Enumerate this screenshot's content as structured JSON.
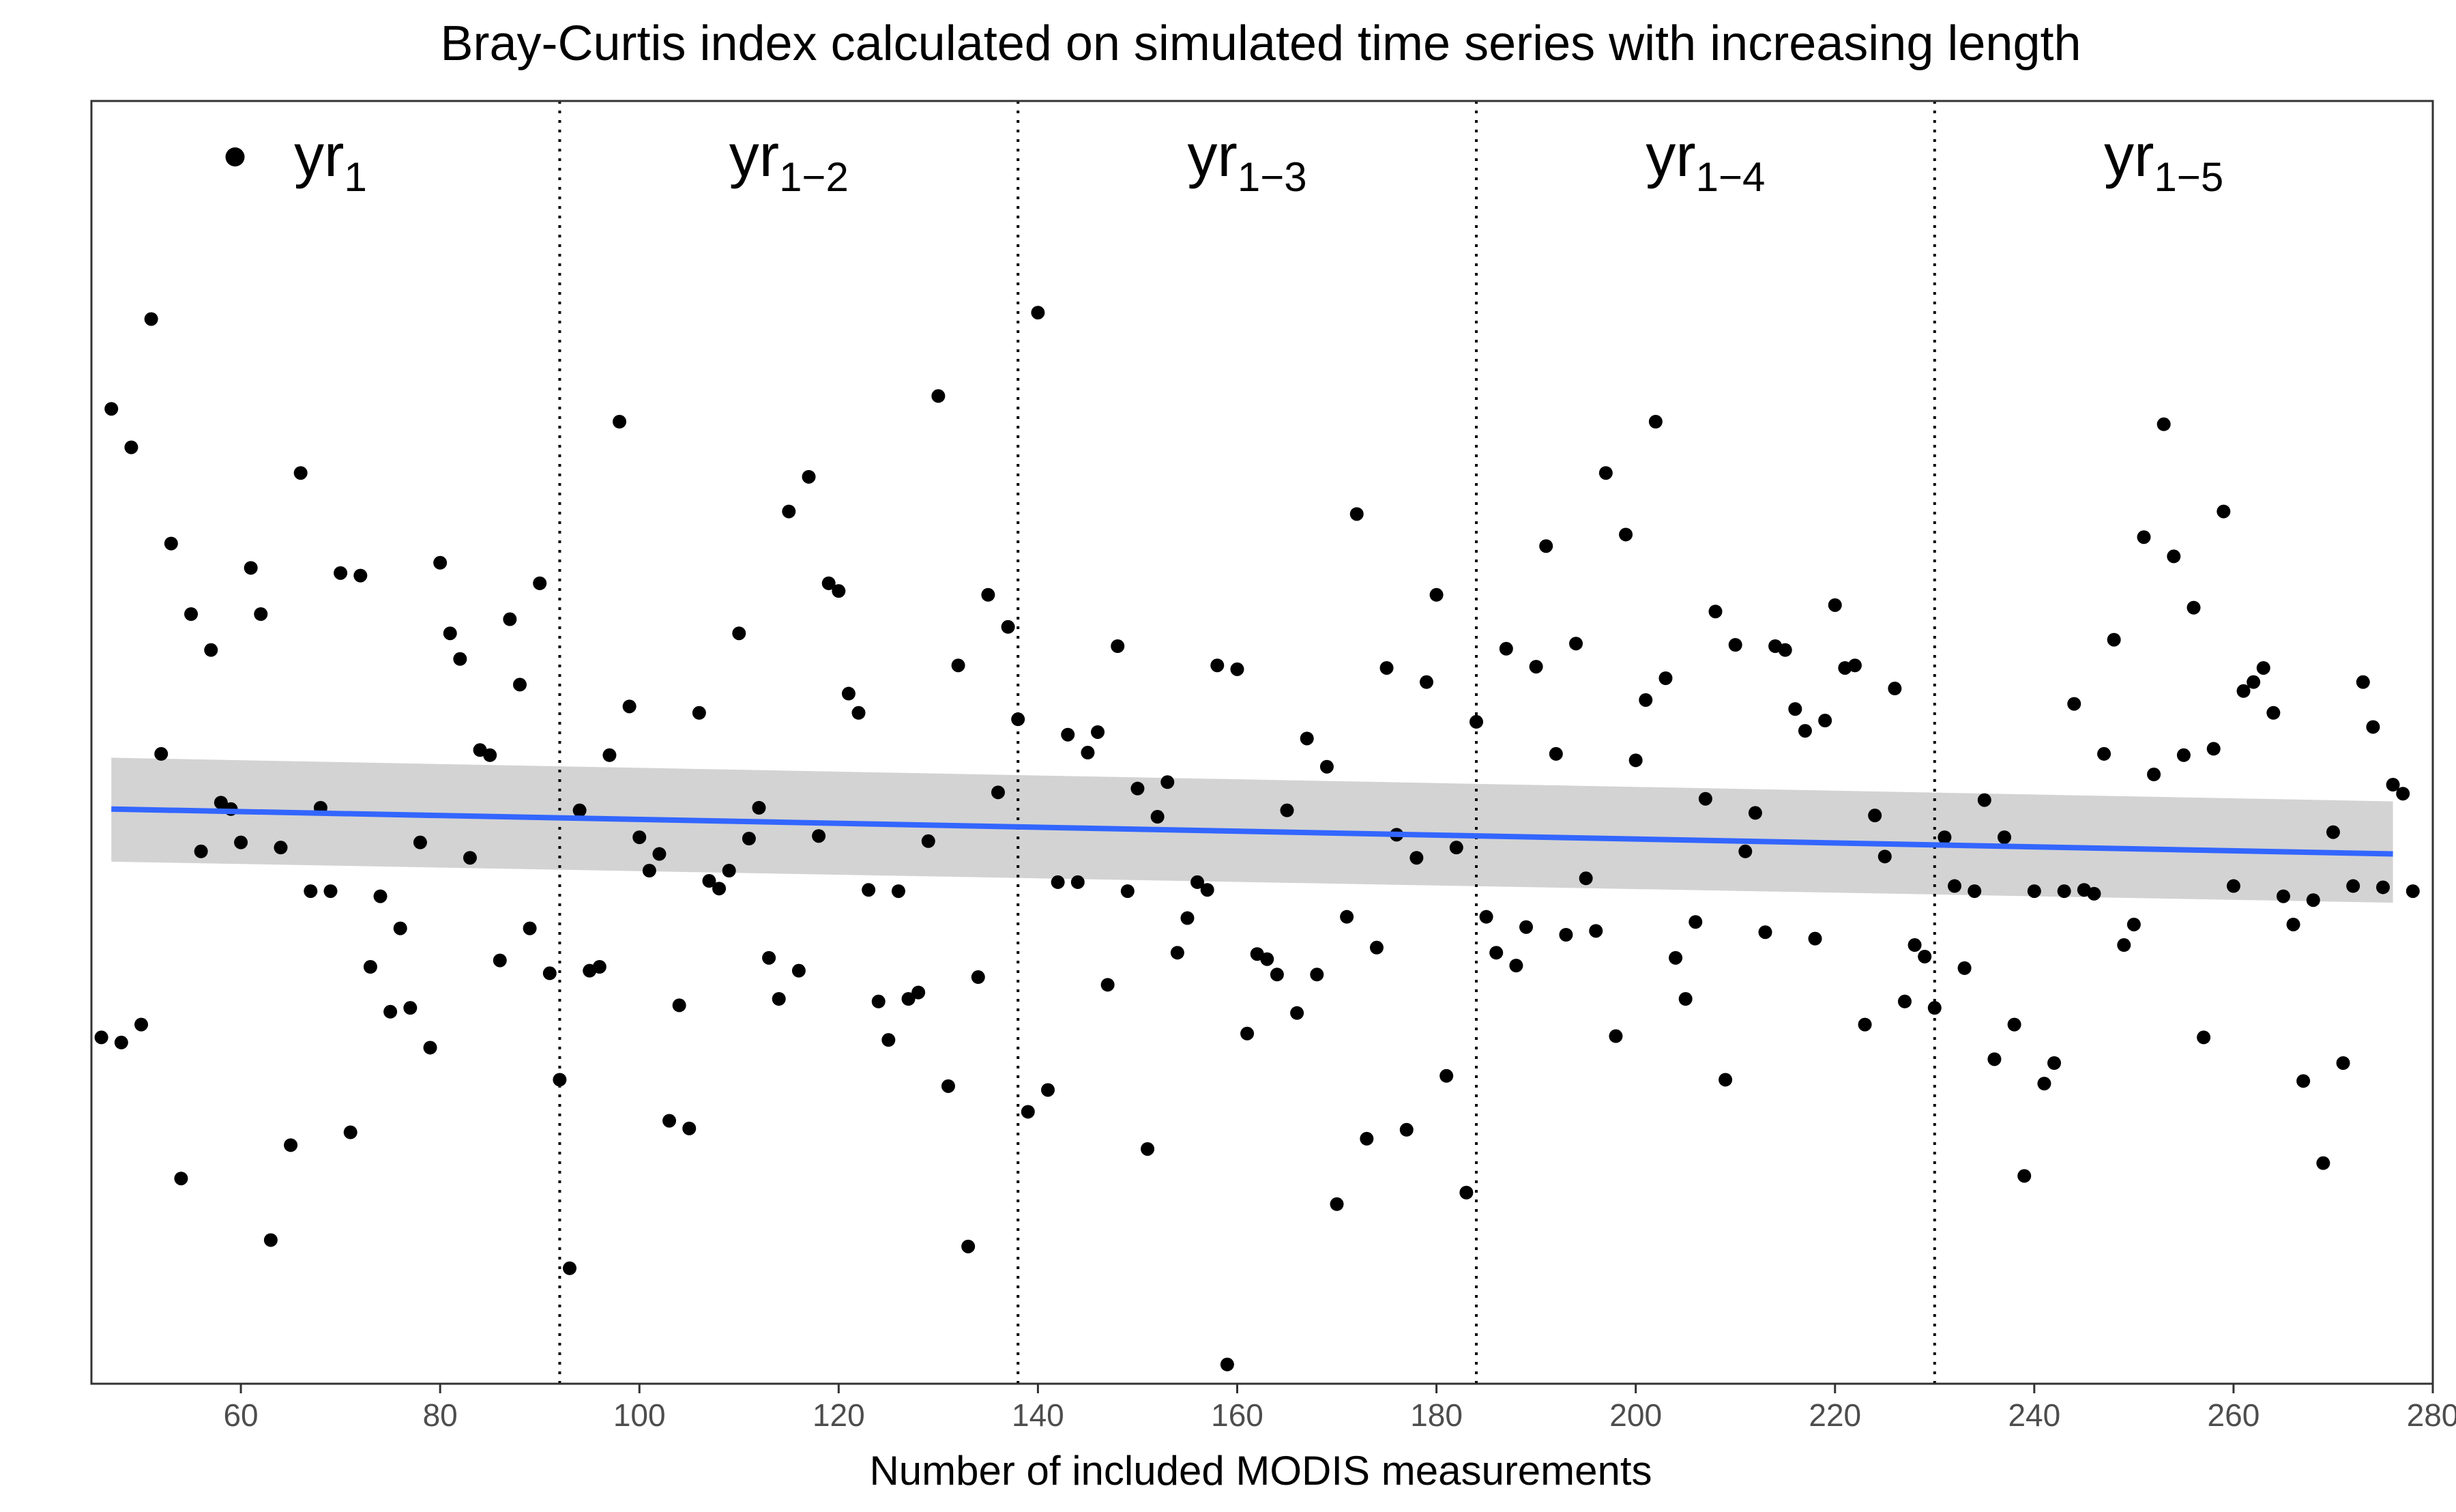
{
  "chart_data": {
    "type": "scatter",
    "title": "Bray-Curtis index calculated on simulated time series with increasing length",
    "xlabel": "Number of included MODIS measurements",
    "ylabel": "",
    "xlim": [
      45,
      280
    ],
    "ylim": [
      0,
      100
    ],
    "x_ticks": [
      60,
      80,
      100,
      120,
      140,
      160,
      180,
      200,
      220,
      240,
      260,
      280
    ],
    "x_tick_labels": [
      "60",
      "80",
      "100",
      "120",
      "140",
      "160",
      "180",
      "200",
      "220",
      "240",
      "260",
      "280"
    ],
    "grid": false,
    "y_axis_labels_shown": false,
    "period_dividers": [
      92,
      138,
      184,
      230
    ],
    "periods": [
      {
        "base": "yr",
        "sub": "1",
        "x_center": 69
      },
      {
        "base": "yr",
        "sub": "1−2",
        "x_center": 115
      },
      {
        "base": "yr",
        "sub": "1−3",
        "x_center": 161
      },
      {
        "base": "yr",
        "sub": "1−4",
        "x_center": 207
      },
      {
        "base": "yr",
        "sub": "1−5",
        "x_center": 253
      }
    ],
    "legend_marker_period": 0,
    "point_color": "#000000",
    "fit_line_color": "#3366FF",
    "ci_band_color": "#D3D3D3",
    "trend": {
      "x": [
        47,
        276
      ],
      "y": [
        44.8,
        41.3
      ],
      "ci_lower": [
        40.7,
        37.5
      ],
      "ci_upper": [
        48.8,
        45.4
      ]
    },
    "series": [
      {
        "points": [
          [
            46,
            27.0
          ],
          [
            47,
            76.0
          ],
          [
            48,
            26.6
          ],
          [
            49,
            73.0
          ],
          [
            50,
            28.0
          ],
          [
            51,
            83.0
          ],
          [
            52,
            49.1
          ],
          [
            53,
            65.5
          ],
          [
            54,
            16.0
          ],
          [
            55,
            60.0
          ],
          [
            56,
            41.5
          ],
          [
            57,
            57.2
          ],
          [
            58,
            45.3
          ],
          [
            59,
            44.8
          ],
          [
            60,
            42.2
          ],
          [
            61,
            63.6
          ],
          [
            62,
            60.0
          ],
          [
            63,
            11.2
          ],
          [
            64,
            41.8
          ],
          [
            65,
            18.6
          ],
          [
            66,
            71.0
          ],
          [
            67,
            38.4
          ],
          [
            68,
            44.9
          ],
          [
            69,
            38.4
          ],
          [
            70,
            63.2
          ],
          [
            71,
            19.6
          ],
          [
            72,
            63.0
          ],
          [
            73,
            32.5
          ],
          [
            74,
            38.0
          ],
          [
            75,
            29.0
          ],
          [
            76,
            35.5
          ],
          [
            77,
            29.3
          ],
          [
            78,
            42.2
          ],
          [
            79,
            26.2
          ],
          [
            80,
            64.0
          ],
          [
            81,
            58.5
          ],
          [
            82,
            56.5
          ],
          [
            83,
            41.0
          ],
          [
            84,
            49.4
          ],
          [
            85,
            49.0
          ],
          [
            86,
            33.0
          ],
          [
            87,
            59.6
          ],
          [
            88,
            54.5
          ],
          [
            89,
            35.5
          ],
          [
            90,
            62.4
          ],
          [
            91,
            32.0
          ],
          [
            92,
            23.7
          ],
          [
            93,
            9.0
          ],
          [
            94,
            44.7
          ],
          [
            95,
            32.2
          ],
          [
            96,
            32.5
          ],
          [
            97,
            49.0
          ],
          [
            98,
            75.0
          ],
          [
            99,
            52.8
          ],
          [
            100,
            42.6
          ],
          [
            101,
            40.0
          ],
          [
            102,
            41.3
          ],
          [
            103,
            20.5
          ],
          [
            104,
            29.5
          ],
          [
            105,
            19.9
          ],
          [
            106,
            52.3
          ],
          [
            107,
            39.2
          ],
          [
            108,
            38.6
          ],
          [
            109,
            40.0
          ],
          [
            110,
            58.5
          ],
          [
            111,
            42.5
          ],
          [
            112,
            44.9
          ],
          [
            113,
            33.2
          ],
          [
            114,
            30.0
          ],
          [
            115,
            68.0
          ],
          [
            116,
            32.2
          ],
          [
            117,
            70.7
          ],
          [
            118,
            42.7
          ],
          [
            119,
            62.4
          ],
          [
            120,
            61.8
          ],
          [
            121,
            53.8
          ],
          [
            122,
            52.3
          ],
          [
            123,
            38.5
          ],
          [
            124,
            29.8
          ],
          [
            125,
            26.8
          ],
          [
            126,
            38.4
          ],
          [
            127,
            30.0
          ],
          [
            128,
            30.5
          ],
          [
            129,
            42.3
          ],
          [
            130,
            77.0
          ],
          [
            131,
            23.2
          ],
          [
            132,
            56.0
          ],
          [
            133,
            10.7
          ],
          [
            134,
            31.7
          ],
          [
            135,
            61.5
          ],
          [
            136,
            46.1
          ],
          [
            137,
            59.0
          ],
          [
            138,
            51.8
          ],
          [
            139,
            21.2
          ],
          [
            140,
            83.5
          ],
          [
            141,
            22.9
          ],
          [
            142,
            39.1
          ],
          [
            143,
            50.6
          ],
          [
            144,
            39.1
          ],
          [
            145,
            49.2
          ],
          [
            146,
            50.8
          ],
          [
            147,
            31.1
          ],
          [
            148,
            57.5
          ],
          [
            149,
            38.4
          ],
          [
            150,
            46.4
          ],
          [
            151,
            18.3
          ],
          [
            152,
            44.2
          ],
          [
            153,
            46.9
          ],
          [
            154,
            33.6
          ],
          [
            155,
            36.3
          ],
          [
            156,
            39.1
          ],
          [
            157,
            38.5
          ],
          [
            158,
            56.0
          ],
          [
            159,
            1.5
          ],
          [
            160,
            55.7
          ],
          [
            161,
            27.3
          ],
          [
            162,
            33.5
          ],
          [
            163,
            33.1
          ],
          [
            164,
            31.9
          ],
          [
            165,
            44.7
          ],
          [
            166,
            28.9
          ],
          [
            167,
            50.3
          ],
          [
            168,
            31.9
          ],
          [
            169,
            48.1
          ],
          [
            170,
            14.0
          ],
          [
            171,
            36.4
          ],
          [
            172,
            67.8
          ],
          [
            173,
            19.1
          ],
          [
            174,
            34.0
          ],
          [
            175,
            55.8
          ],
          [
            176,
            42.8
          ],
          [
            177,
            19.8
          ],
          [
            178,
            41.0
          ],
          [
            179,
            54.7
          ],
          [
            180,
            61.5
          ],
          [
            181,
            24.0
          ],
          [
            182,
            41.8
          ],
          [
            183,
            14.9
          ],
          [
            184,
            51.6
          ],
          [
            185,
            36.4
          ],
          [
            186,
            33.6
          ],
          [
            187,
            57.3
          ],
          [
            188,
            32.6
          ],
          [
            189,
            35.6
          ],
          [
            190,
            55.9
          ],
          [
            191,
            65.3
          ],
          [
            192,
            49.1
          ],
          [
            193,
            35.0
          ],
          [
            194,
            57.7
          ],
          [
            195,
            39.4
          ],
          [
            196,
            35.3
          ],
          [
            197,
            71.0
          ],
          [
            198,
            27.1
          ],
          [
            199,
            66.2
          ],
          [
            200,
            48.6
          ],
          [
            201,
            53.3
          ],
          [
            202,
            75.0
          ],
          [
            203,
            55.0
          ],
          [
            204,
            33.2
          ],
          [
            205,
            30.0
          ],
          [
            206,
            36.0
          ],
          [
            207,
            45.6
          ],
          [
            208,
            60.2
          ],
          [
            209,
            23.7
          ],
          [
            210,
            57.6
          ],
          [
            211,
            41.5
          ],
          [
            212,
            44.5
          ],
          [
            213,
            35.2
          ],
          [
            214,
            57.5
          ],
          [
            215,
            57.2
          ],
          [
            216,
            52.6
          ],
          [
            217,
            50.9
          ],
          [
            218,
            34.7
          ],
          [
            219,
            51.7
          ],
          [
            220,
            60.7
          ],
          [
            221,
            55.8
          ],
          [
            222,
            56.0
          ],
          [
            223,
            28.0
          ],
          [
            224,
            44.3
          ],
          [
            225,
            41.1
          ],
          [
            226,
            54.2
          ],
          [
            227,
            29.8
          ],
          [
            228,
            34.2
          ],
          [
            229,
            33.3
          ],
          [
            230,
            29.3
          ],
          [
            231,
            42.6
          ],
          [
            232,
            38.8
          ],
          [
            233,
            32.4
          ],
          [
            234,
            38.4
          ],
          [
            235,
            45.5
          ],
          [
            236,
            25.3
          ],
          [
            237,
            42.6
          ],
          [
            238,
            28.0
          ],
          [
            239,
            16.2
          ],
          [
            240,
            38.4
          ],
          [
            241,
            23.4
          ],
          [
            242,
            25.0
          ],
          [
            243,
            38.4
          ],
          [
            244,
            53.0
          ],
          [
            245,
            38.5
          ],
          [
            246,
            38.2
          ],
          [
            247,
            49.1
          ],
          [
            248,
            58.0
          ],
          [
            249,
            34.2
          ],
          [
            250,
            35.8
          ],
          [
            251,
            66.0
          ],
          [
            252,
            47.5
          ],
          [
            253,
            74.8
          ],
          [
            254,
            64.5
          ],
          [
            255,
            49.0
          ],
          [
            256,
            60.5
          ],
          [
            257,
            27.0
          ],
          [
            258,
            49.5
          ],
          [
            259,
            68.0
          ],
          [
            260,
            38.8
          ],
          [
            261,
            54.0
          ],
          [
            262,
            54.7
          ],
          [
            263,
            55.8
          ],
          [
            264,
            52.3
          ],
          [
            265,
            38.0
          ],
          [
            266,
            35.8
          ],
          [
            267,
            23.6
          ],
          [
            268,
            37.7
          ],
          [
            269,
            17.2
          ],
          [
            270,
            43.0
          ],
          [
            271,
            25.0
          ],
          [
            272,
            38.8
          ],
          [
            273,
            54.7
          ],
          [
            274,
            51.2
          ],
          [
            275,
            38.7
          ],
          [
            276,
            46.7
          ],
          [
            277,
            46.0
          ],
          [
            278,
            38.4
          ]
        ]
      }
    ]
  }
}
